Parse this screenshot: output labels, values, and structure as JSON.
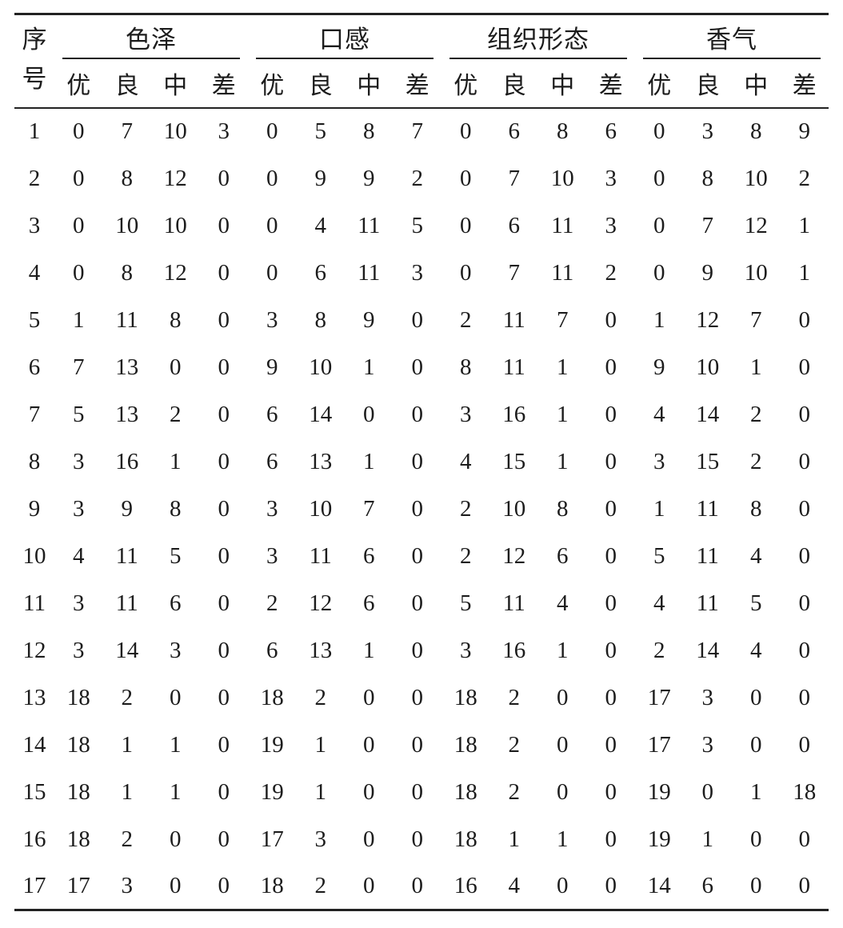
{
  "table": {
    "id_header": "序号",
    "groups": [
      {
        "name": "color-luster",
        "label": "色泽",
        "sub": [
          "优",
          "良",
          "中",
          "差"
        ]
      },
      {
        "name": "taste",
        "label": "口感",
        "sub": [
          "优",
          "良",
          "中",
          "差"
        ]
      },
      {
        "name": "texture-form",
        "label": "组织形态",
        "sub": [
          "优",
          "良",
          "中",
          "差"
        ]
      },
      {
        "name": "aroma",
        "label": "香气",
        "sub": [
          "优",
          "良",
          "中",
          "差"
        ]
      }
    ],
    "rows": [
      {
        "id": "1",
        "values": [
          0,
          7,
          10,
          3,
          0,
          5,
          8,
          7,
          0,
          6,
          8,
          6,
          0,
          3,
          8,
          9
        ]
      },
      {
        "id": "2",
        "values": [
          0,
          8,
          12,
          0,
          0,
          9,
          9,
          2,
          0,
          7,
          10,
          3,
          0,
          8,
          10,
          2
        ]
      },
      {
        "id": "3",
        "values": [
          0,
          10,
          10,
          0,
          0,
          4,
          11,
          5,
          0,
          6,
          11,
          3,
          0,
          7,
          12,
          1
        ]
      },
      {
        "id": "4",
        "values": [
          0,
          8,
          12,
          0,
          0,
          6,
          11,
          3,
          0,
          7,
          11,
          2,
          0,
          9,
          10,
          1
        ]
      },
      {
        "id": "5",
        "values": [
          1,
          11,
          8,
          0,
          3,
          8,
          9,
          0,
          2,
          11,
          7,
          0,
          1,
          12,
          7,
          0
        ]
      },
      {
        "id": "6",
        "values": [
          7,
          13,
          0,
          0,
          9,
          10,
          1,
          0,
          8,
          11,
          1,
          0,
          9,
          10,
          1,
          0
        ]
      },
      {
        "id": "7",
        "values": [
          5,
          13,
          2,
          0,
          6,
          14,
          0,
          0,
          3,
          16,
          1,
          0,
          4,
          14,
          2,
          0
        ]
      },
      {
        "id": "8",
        "values": [
          3,
          16,
          1,
          0,
          6,
          13,
          1,
          0,
          4,
          15,
          1,
          0,
          3,
          15,
          2,
          0
        ]
      },
      {
        "id": "9",
        "values": [
          3,
          9,
          8,
          0,
          3,
          10,
          7,
          0,
          2,
          10,
          8,
          0,
          1,
          11,
          8,
          0
        ]
      },
      {
        "id": "10",
        "values": [
          4,
          11,
          5,
          0,
          3,
          11,
          6,
          0,
          2,
          12,
          6,
          0,
          5,
          11,
          4,
          0
        ]
      },
      {
        "id": "11",
        "values": [
          3,
          11,
          6,
          0,
          2,
          12,
          6,
          0,
          5,
          11,
          4,
          0,
          4,
          11,
          5,
          0
        ]
      },
      {
        "id": "12",
        "values": [
          3,
          14,
          3,
          0,
          6,
          13,
          1,
          0,
          3,
          16,
          1,
          0,
          2,
          14,
          4,
          0
        ]
      },
      {
        "id": "13",
        "values": [
          18,
          2,
          0,
          0,
          18,
          2,
          0,
          0,
          18,
          2,
          0,
          0,
          17,
          3,
          0,
          0
        ]
      },
      {
        "id": "14",
        "values": [
          18,
          1,
          1,
          0,
          19,
          1,
          0,
          0,
          18,
          2,
          0,
          0,
          17,
          3,
          0,
          0
        ]
      },
      {
        "id": "15",
        "values": [
          18,
          1,
          1,
          0,
          19,
          1,
          0,
          0,
          18,
          2,
          0,
          0,
          19,
          0,
          1,
          18
        ]
      },
      {
        "id": "16",
        "values": [
          18,
          2,
          0,
          0,
          17,
          3,
          0,
          0,
          18,
          1,
          1,
          0,
          19,
          1,
          0,
          0
        ]
      },
      {
        "id": "17",
        "values": [
          17,
          3,
          0,
          0,
          18,
          2,
          0,
          0,
          16,
          4,
          0,
          0,
          14,
          6,
          0,
          0
        ]
      }
    ]
  }
}
